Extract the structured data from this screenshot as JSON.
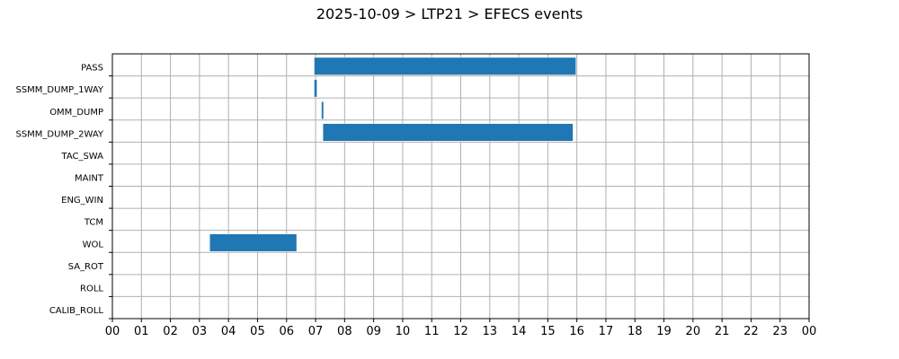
{
  "chart_data": {
    "type": "bar",
    "orientation": "horizontal-gantt",
    "title": "2025-10-09 > LTP21 > EFECS events",
    "xlabel": "",
    "ylabel": "",
    "xlim": [
      0,
      24
    ],
    "x_unit": "hour",
    "x_ticks": [
      "00",
      "01",
      "02",
      "03",
      "04",
      "05",
      "06",
      "07",
      "08",
      "09",
      "10",
      "11",
      "12",
      "13",
      "14",
      "15",
      "16",
      "17",
      "18",
      "19",
      "20",
      "21",
      "22",
      "23",
      "00"
    ],
    "grid": true,
    "bar_color": "#1f77b4",
    "categories": [
      "PASS",
      "SSMM_DUMP_1WAY",
      "OMM_DUMP",
      "SSMM_DUMP_2WAY",
      "TAC_SWA",
      "MAINT",
      "ENG_WIN",
      "TCM",
      "WOL",
      "SA_ROT",
      "ROLL",
      "CALIB_ROLL"
    ],
    "events": [
      {
        "category": "PASS",
        "start": 6.95,
        "end": 15.97
      },
      {
        "category": "SSMM_DUMP_1WAY",
        "start": 6.95,
        "end": 7.05
      },
      {
        "category": "OMM_DUMP",
        "start": 7.2,
        "end": 7.25
      },
      {
        "category": "SSMM_DUMP_2WAY",
        "start": 7.25,
        "end": 15.87
      },
      {
        "category": "WOL",
        "start": 3.35,
        "end": 6.35
      }
    ]
  }
}
